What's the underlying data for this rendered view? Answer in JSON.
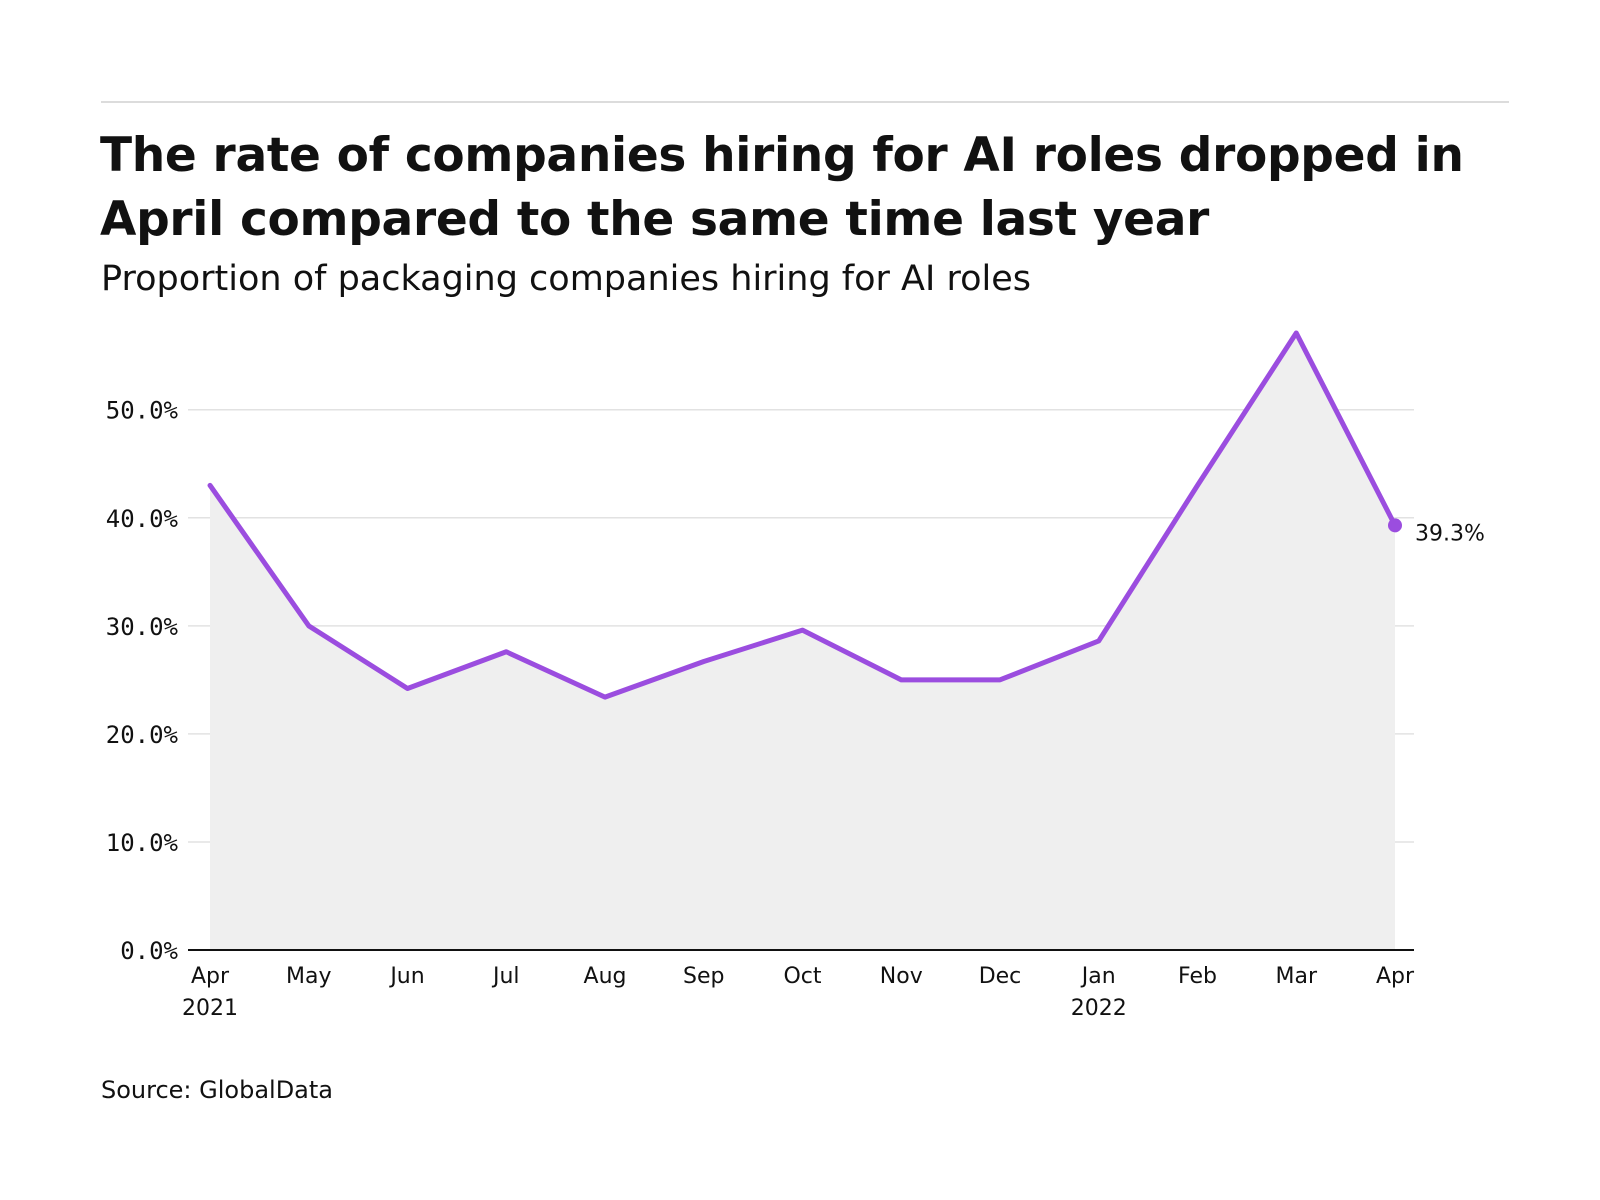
{
  "header": {
    "title": "The rate of companies hiring for AI roles dropped in April compared to the same time last year",
    "subtitle": "Proportion of packaging companies hiring for AI roles"
  },
  "footer": {
    "source": "Source: GlobalData"
  },
  "colors": {
    "line": "#9b4ddf",
    "area": "#efefef",
    "grid": "#e2e2e2",
    "axis": "#111111",
    "text": "#111111"
  },
  "chart_data": {
    "type": "area",
    "title": "The rate of companies hiring for AI roles dropped in April compared to the same time last year",
    "subtitle": "Proportion of packaging companies hiring for AI roles",
    "xlabel": "",
    "ylabel": "",
    "categories": [
      "Apr 2021",
      "May",
      "Jun",
      "Jul",
      "Aug",
      "Sep",
      "Oct",
      "Nov",
      "Dec",
      "Jan 2022",
      "Feb",
      "Mar",
      "Apr"
    ],
    "x_tick_labels": [
      [
        "Apr",
        "2021"
      ],
      [
        "May"
      ],
      [
        "Jun"
      ],
      [
        "Jul"
      ],
      [
        "Aug"
      ],
      [
        "Sep"
      ],
      [
        "Oct"
      ],
      [
        "Nov"
      ],
      [
        "Dec"
      ],
      [
        "Jan",
        "2022"
      ],
      [
        "Feb"
      ],
      [
        "Mar"
      ],
      [
        "Apr"
      ]
    ],
    "series": [
      {
        "values": [
          43.0,
          30.0,
          24.2,
          27.6,
          23.4,
          26.7,
          29.6,
          25.0,
          25.0,
          28.6,
          43.0,
          57.1,
          39.3
        ]
      }
    ],
    "ylim": [
      0,
      57.1
    ],
    "y_ticks": [
      0,
      10,
      20,
      30,
      40,
      50
    ],
    "y_tick_labels": [
      "0.0%",
      "10.0%",
      "20.0%",
      "30.0%",
      "40.0%",
      "50.0%"
    ],
    "last_value_label": "39.3%",
    "grid": true,
    "legend": "none"
  }
}
